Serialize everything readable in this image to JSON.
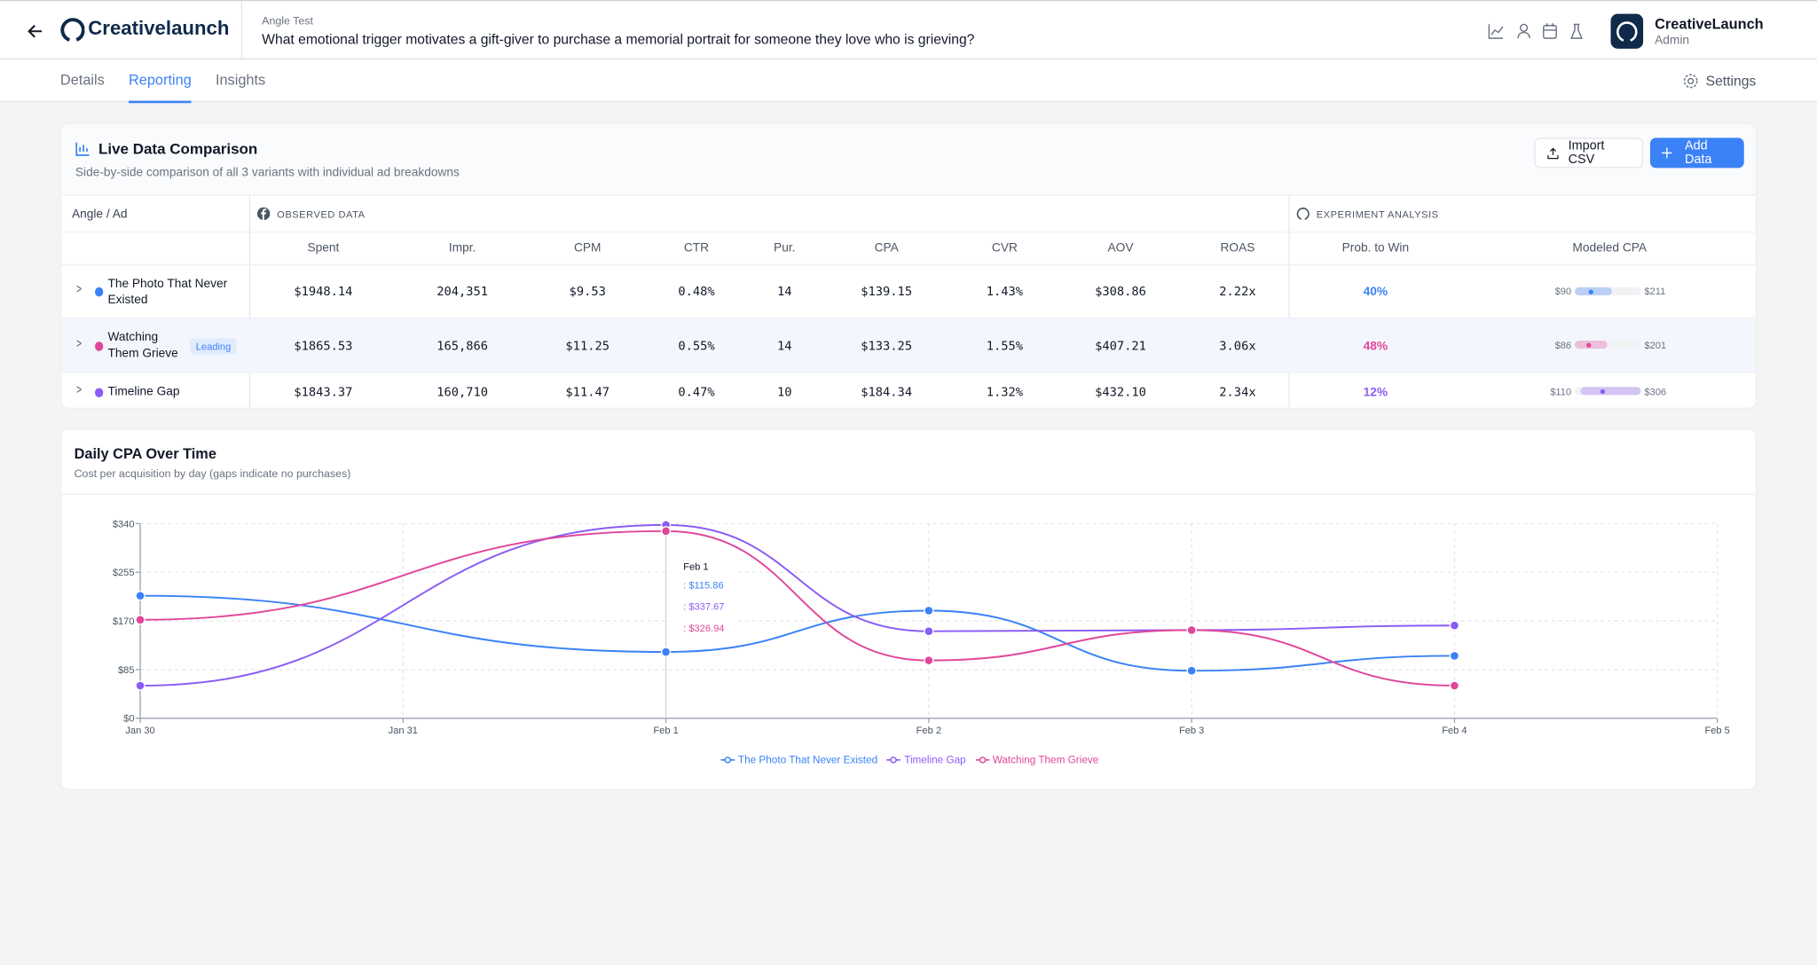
{
  "header": {
    "logo": "Creativelaunch",
    "eyebrow": "Angle Test",
    "question": "What emotional trigger motivates a gift-giver to purchase a memorial portrait for someone they love who is grieving?",
    "user": {
      "name": "CreativeLaunch",
      "role": "Admin"
    }
  },
  "tabs": [
    {
      "label": "Details"
    },
    {
      "label": "Reporting",
      "active": true
    },
    {
      "label": "Insights"
    }
  ],
  "settings": "Settings",
  "comparison": {
    "title": "Live Data Comparison",
    "subtitle": "Side-by-side comparison of all 3 variants with individual ad breakdowns",
    "buttons": [
      "Import CSV",
      "Add Data"
    ],
    "groups": [
      "Angle / Ad",
      "OBSERVED DATA",
      "EXPERIMENT ANALYSIS"
    ],
    "columns": [
      "Spent",
      "Impr.",
      "CPM",
      "CTR",
      "Pur.",
      "CPA",
      "CVR",
      "AOV",
      "ROAS",
      "Prob. to Win",
      "Modeled CPA"
    ],
    "rows": [
      {
        "name": "The Photo That Never Existed",
        "color": "#3b82f6",
        "cells": [
          "$1948.14",
          "204,351",
          "$9.53",
          "0.48%",
          "14",
          "$139.15",
          "1.43%",
          "$308.86",
          "2.22x"
        ],
        "prob": "40%",
        "cpa_min": "$90",
        "cpa_max": "$211"
      },
      {
        "name": "Watching Them Grieve",
        "color": "#e0479a",
        "badge": "Leading",
        "cells": [
          "$1865.53",
          "165,866",
          "$11.25",
          "0.55%",
          "14",
          "$133.25",
          "1.55%",
          "$407.21",
          "3.06x"
        ],
        "prob": "48%",
        "cpa_min": "$86",
        "cpa_max": "$201"
      },
      {
        "name": "Timeline Gap",
        "color": "#8b5cf6",
        "cells": [
          "$1843.37",
          "160,710",
          "$11.47",
          "0.47%",
          "10",
          "$184.34",
          "1.32%",
          "$432.10",
          "2.34x"
        ],
        "prob": "12%",
        "cpa_min": "$110",
        "cpa_max": "$306"
      }
    ]
  },
  "chart_data": {
    "type": "line",
    "title": "Daily CPA Over Time",
    "subtitle": "Cost per acquisition by day (gaps indicate no purchases)",
    "categories": [
      "Jan 30",
      "Jan 31",
      "Feb 1",
      "Feb 2",
      "Feb 3",
      "Feb 4",
      "Feb 5"
    ],
    "series": [
      {
        "name": "The Photo That Never Existed",
        "color": "#3b82f6",
        "x": [
          "Jan 30",
          "Feb 1",
          "Feb 2",
          "Feb 3",
          "Feb 4"
        ],
        "values": [
          214,
          115.86,
          188,
          83,
          109
        ]
      },
      {
        "name": "Timeline Gap",
        "color": "#8b5cf6",
        "x": [
          "Jan 30",
          "Feb 1",
          "Feb 2",
          "Feb 3",
          "Feb 4"
        ],
        "values": [
          57,
          337.67,
          152,
          154,
          162
        ]
      },
      {
        "name": "Watching Them Grieve",
        "color": "#e0479a",
        "x": [
          "Jan 30",
          "Feb 1",
          "Feb 2",
          "Feb 3",
          "Feb 4"
        ],
        "values": [
          172,
          326.94,
          101,
          154,
          57
        ]
      }
    ],
    "ylim": [
      0,
      340
    ],
    "yticks": [
      {
        "value": 0,
        "label": "$0"
      },
      {
        "value": 85,
        "label": "$85"
      },
      {
        "value": 170,
        "label": "$170"
      },
      {
        "value": 255,
        "label": "$255"
      },
      {
        "value": 340,
        "label": "$340"
      }
    ],
    "grid": true,
    "tooltip": {
      "title": "Feb 1",
      "lines": [
        ": $115.86",
        ": $337.67",
        ": $326.94"
      ]
    }
  }
}
